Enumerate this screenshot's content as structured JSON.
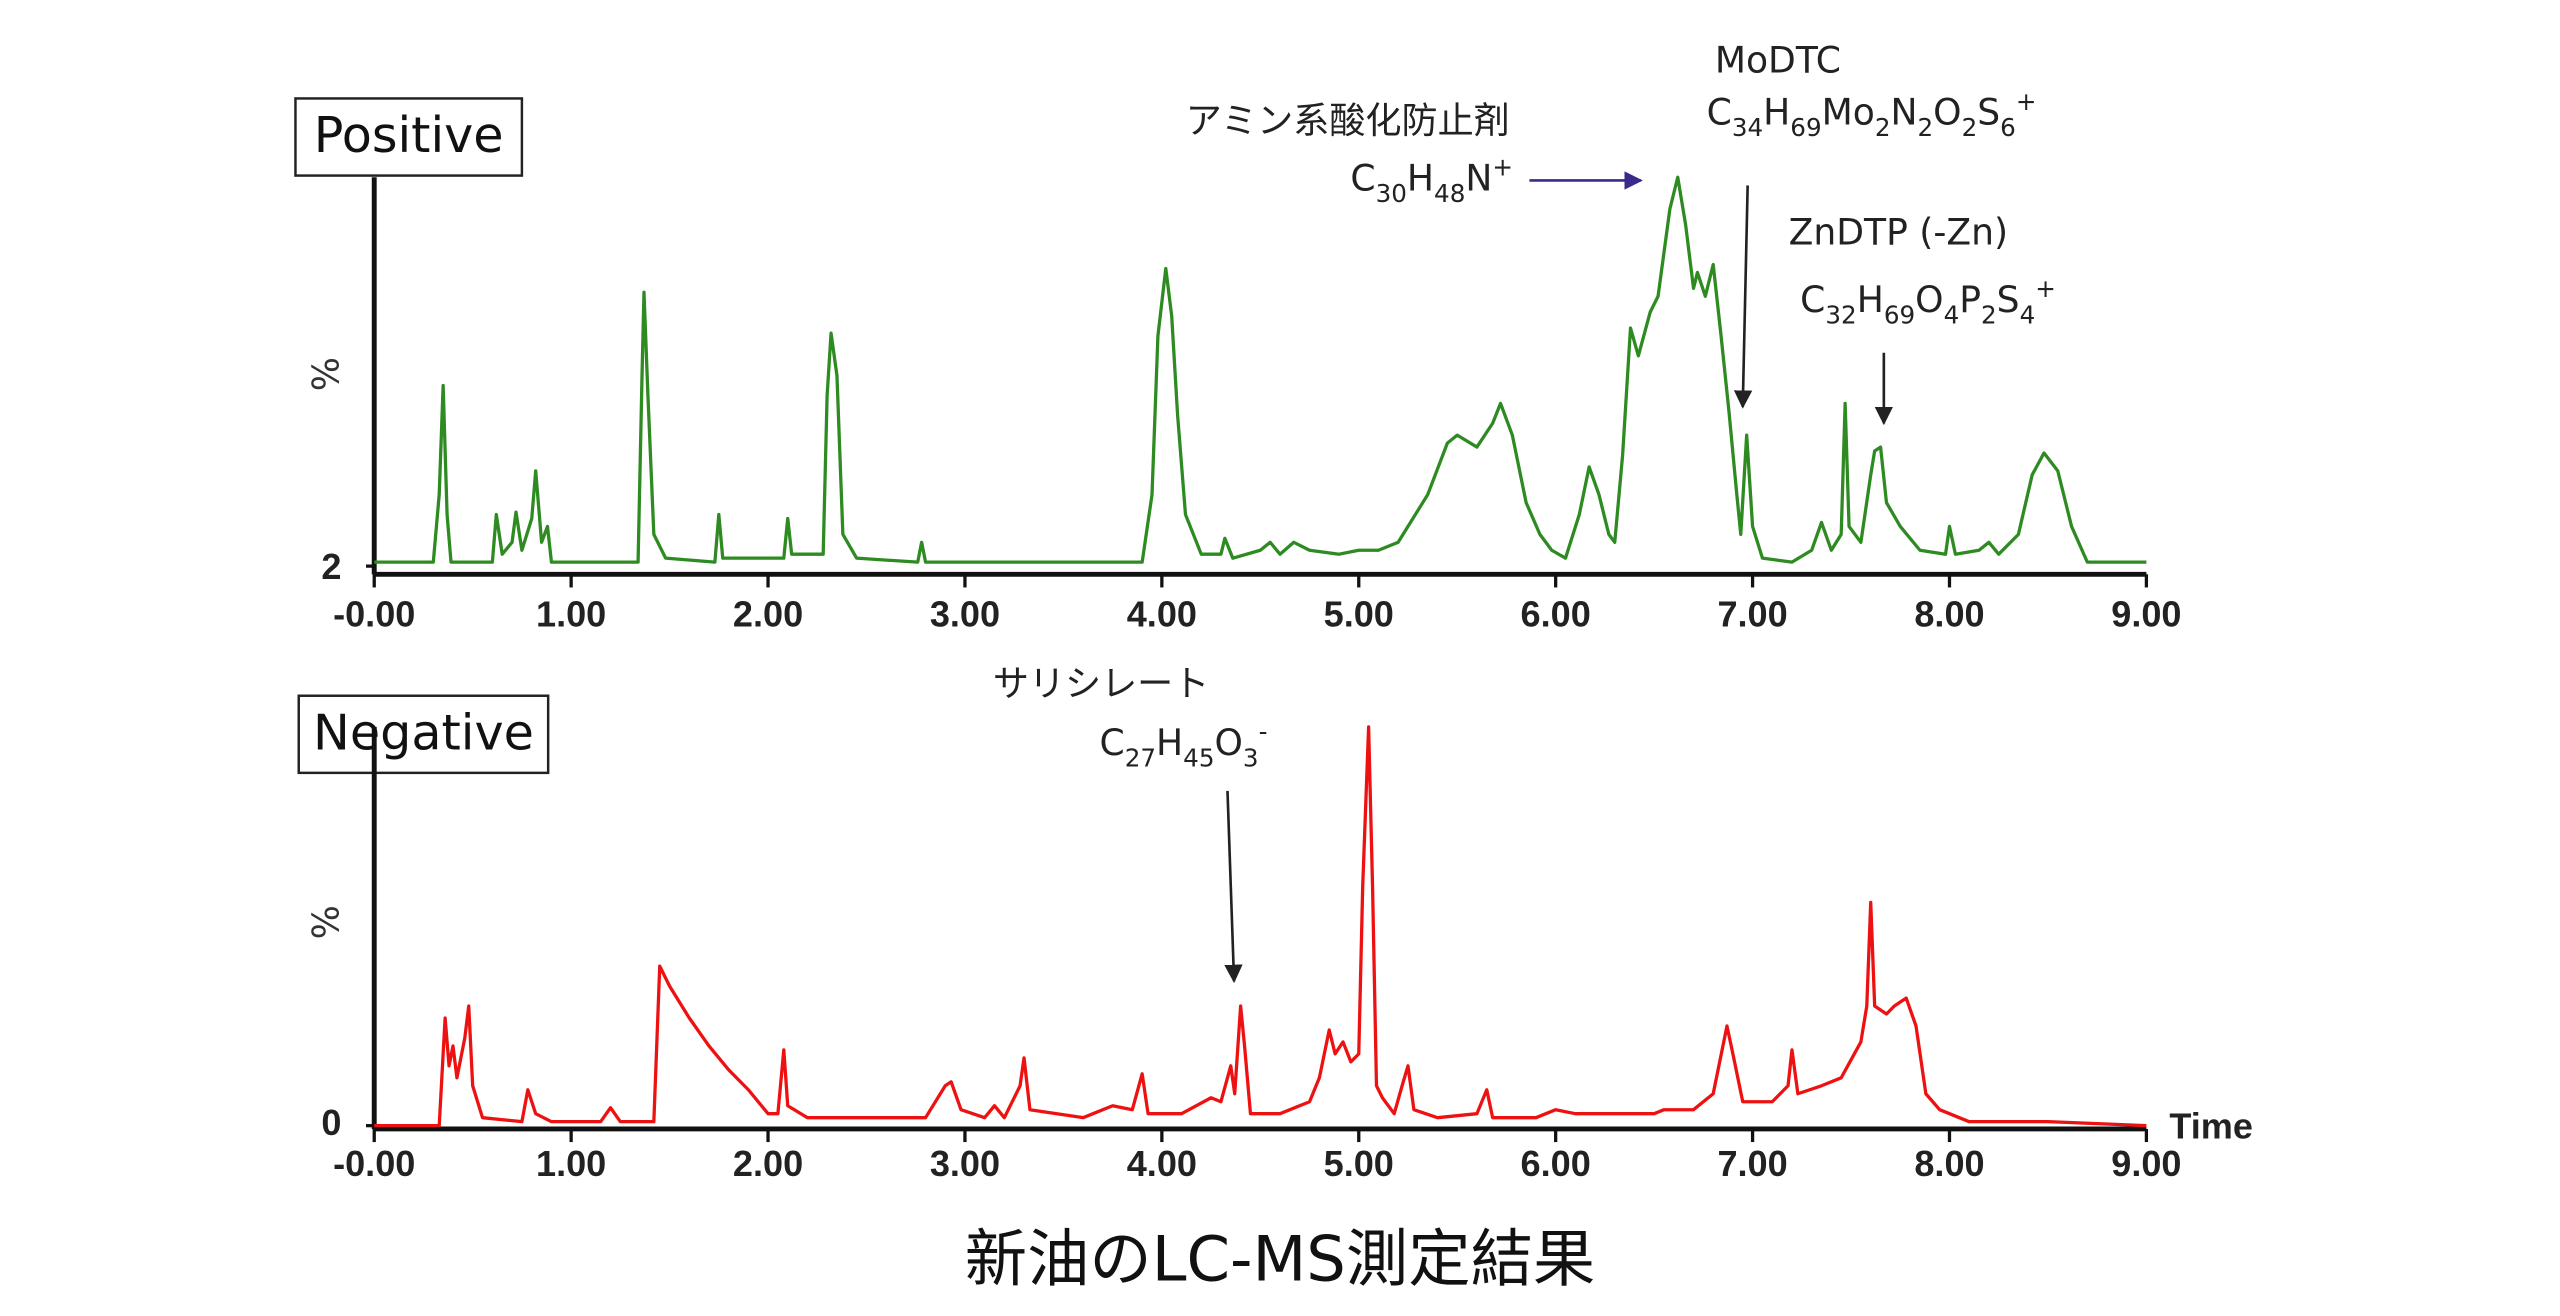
{
  "title": "新油のLC-MS測定結果",
  "chart_data": [
    {
      "type": "line",
      "title": "Positive",
      "y_label": "%",
      "color": "#2e8b22",
      "xlim": [
        0,
        9
      ],
      "ylim": [
        2,
        100
      ],
      "xticks": [
        {
          "value": 0,
          "label": "-0.00"
        },
        {
          "value": 1,
          "label": "1.00"
        },
        {
          "value": 2,
          "label": "2.00"
        },
        {
          "value": 3,
          "label": "3.00"
        },
        {
          "value": 4,
          "label": "4.00"
        },
        {
          "value": 5,
          "label": "5.00"
        },
        {
          "value": 6,
          "label": "6.00"
        },
        {
          "value": 7,
          "label": "7.00"
        },
        {
          "value": 8,
          "label": "8.00"
        },
        {
          "value": 9,
          "label": "9.00"
        }
      ],
      "yticks": [
        2
      ],
      "x": [
        0,
        0.3,
        0.33,
        0.35,
        0.37,
        0.39,
        0.6,
        0.62,
        0.65,
        0.7,
        0.72,
        0.75,
        0.8,
        0.82,
        0.85,
        0.88,
        0.9,
        1.34,
        1.36,
        1.37,
        1.39,
        1.42,
        1.48,
        1.73,
        1.75,
        1.77,
        2.08,
        2.1,
        2.12,
        2.28,
        2.3,
        2.32,
        2.35,
        2.38,
        2.45,
        2.76,
        2.78,
        2.8,
        3.9,
        3.95,
        3.98,
        4.02,
        4.05,
        4.08,
        4.12,
        4.2,
        4.3,
        4.32,
        4.36,
        4.5,
        4.55,
        4.6,
        4.67,
        4.75,
        4.9,
        5.0,
        5.1,
        5.2,
        5.35,
        5.45,
        5.5,
        5.6,
        5.68,
        5.72,
        5.78,
        5.85,
        5.92,
        5.98,
        6.05,
        6.12,
        6.17,
        6.22,
        6.27,
        6.3,
        6.34,
        6.38,
        6.42,
        6.48,
        6.52,
        6.58,
        6.62,
        6.66,
        6.7,
        6.72,
        6.76,
        6.8,
        6.84,
        6.88,
        6.92,
        6.94,
        6.97,
        7.0,
        7.05,
        7.2,
        7.3,
        7.35,
        7.4,
        7.45,
        7.47,
        7.49,
        7.55,
        7.6,
        7.62,
        7.65,
        7.68,
        7.75,
        7.85,
        7.98,
        8.0,
        8.03,
        8.15,
        8.2,
        8.25,
        8.35,
        8.42,
        8.48,
        8.55,
        8.62,
        8.7,
        9.0
      ],
      "values": [
        3,
        3,
        20,
        47.5,
        15,
        3,
        3,
        15,
        5,
        8,
        15.6,
        6,
        14,
        26,
        8,
        12,
        3,
        3,
        50,
        71,
        45,
        10,
        4,
        3,
        15,
        4,
        4,
        14,
        5,
        5,
        45,
        60.7,
        50,
        10,
        4,
        3,
        8,
        3,
        3,
        20,
        60,
        77,
        65,
        40,
        15,
        5,
        5,
        9,
        4,
        6,
        8,
        5,
        8,
        6,
        5,
        6,
        6,
        8,
        20,
        33,
        35,
        32,
        38,
        43,
        35,
        18,
        10,
        6,
        4,
        15,
        27,
        20,
        10,
        8,
        30,
        62,
        55,
        66,
        70,
        92,
        100,
        88,
        72,
        76,
        70,
        78,
        60,
        41,
        20,
        10,
        35,
        12,
        4,
        3,
        6,
        13,
        6,
        10,
        43,
        12,
        8,
        25,
        31,
        32,
        18,
        12,
        6,
        5,
        12,
        5,
        6,
        8,
        5,
        10,
        25,
        30.5,
        26,
        12,
        3,
        3
      ],
      "annotations": [
        {
          "label": "アミン系酸化防止剤",
          "formula": [
            {
              "text": "C"
            },
            {
              "text": "30",
              "pos": "sub"
            },
            {
              "text": "H"
            },
            {
              "text": "48",
              "pos": "sub"
            },
            {
              "text": "N"
            },
            {
              "text": "+",
              "pos": "sup"
            }
          ]
        },
        {
          "label": "MoDTC",
          "formula": [
            {
              "text": "C"
            },
            {
              "text": "34",
              "pos": "sub"
            },
            {
              "text": "H"
            },
            {
              "text": "69",
              "pos": "sub"
            },
            {
              "text": "Mo"
            },
            {
              "text": "2",
              "pos": "sub"
            },
            {
              "text": "N"
            },
            {
              "text": "2",
              "pos": "sub"
            },
            {
              "text": "O"
            },
            {
              "text": "2",
              "pos": "sub"
            },
            {
              "text": "S"
            },
            {
              "text": "6",
              "pos": "sub"
            },
            {
              "text": "+",
              "pos": "sup"
            }
          ]
        },
        {
          "label": "ZnDTP (-Zn)",
          "formula": [
            {
              "text": "C"
            },
            {
              "text": "32",
              "pos": "sub"
            },
            {
              "text": "H"
            },
            {
              "text": "69",
              "pos": "sub"
            },
            {
              "text": "O"
            },
            {
              "text": "4",
              "pos": "sub"
            },
            {
              "text": "P"
            },
            {
              "text": "2",
              "pos": "sub"
            },
            {
              "text": "S"
            },
            {
              "text": "4",
              "pos": "sub"
            },
            {
              "text": "+",
              "pos": "sup"
            }
          ]
        }
      ]
    },
    {
      "type": "line",
      "title": "Negative",
      "y_label": "%",
      "x_label": "Time",
      "color": "#ee1111",
      "xlim": [
        0,
        9
      ],
      "ylim": [
        0,
        100
      ],
      "xticks": [
        {
          "value": 0,
          "label": "-0.00"
        },
        {
          "value": 1,
          "label": "1.00"
        },
        {
          "value": 2,
          "label": "2.00"
        },
        {
          "value": 3,
          "label": "3.00"
        },
        {
          "value": 4,
          "label": "4.00"
        },
        {
          "value": 5,
          "label": "5.00"
        },
        {
          "value": 6,
          "label": "6.00"
        },
        {
          "value": 7,
          "label": "7.00"
        },
        {
          "value": 8,
          "label": "8.00"
        },
        {
          "value": 9,
          "label": "9.00"
        }
      ],
      "yticks": [
        0
      ],
      "x": [
        0,
        0.33,
        0.36,
        0.38,
        0.4,
        0.42,
        0.46,
        0.48,
        0.5,
        0.55,
        0.75,
        0.78,
        0.82,
        0.9,
        1.15,
        1.2,
        1.25,
        1.42,
        1.45,
        1.5,
        1.6,
        1.7,
        1.8,
        1.9,
        2.0,
        2.05,
        2.08,
        2.1,
        2.2,
        2.5,
        2.8,
        2.9,
        2.93,
        2.98,
        3.1,
        3.15,
        3.2,
        3.28,
        3.3,
        3.33,
        3.6,
        3.75,
        3.85,
        3.9,
        3.93,
        4.1,
        4.25,
        4.3,
        4.35,
        4.37,
        4.4,
        4.42,
        4.45,
        4.6,
        4.75,
        4.8,
        4.85,
        4.88,
        4.92,
        4.96,
        5.0,
        5.02,
        5.05,
        5.07,
        5.09,
        5.12,
        5.18,
        5.22,
        5.25,
        5.28,
        5.4,
        5.6,
        5.65,
        5.68,
        5.9,
        6.0,
        6.1,
        6.5,
        6.55,
        6.7,
        6.8,
        6.87,
        6.9,
        6.95,
        7.0,
        7.1,
        7.18,
        7.2,
        7.23,
        7.35,
        7.45,
        7.55,
        7.58,
        7.6,
        7.62,
        7.68,
        7.72,
        7.78,
        7.83,
        7.88,
        7.95,
        8.1,
        8.5,
        9.0
      ],
      "values": [
        0,
        0,
        27,
        15,
        20,
        12,
        22,
        30,
        10,
        2,
        1,
        9,
        3,
        1,
        1,
        4.5,
        1,
        1,
        40,
        35,
        27,
        20,
        14,
        9,
        3,
        3,
        19,
        5,
        2,
        2,
        2,
        10,
        11,
        4,
        2,
        5,
        2,
        10,
        17,
        4,
        2,
        5,
        4,
        13,
        3,
        3,
        7,
        6,
        15,
        8,
        30,
        20,
        3,
        3,
        6,
        12,
        24,
        18,
        21,
        16,
        18,
        60,
        100,
        60,
        10,
        7,
        3,
        10,
        15,
        4,
        2,
        3,
        9,
        2,
        2,
        4,
        3,
        3,
        4,
        4,
        8,
        25,
        18,
        6,
        6,
        6,
        10,
        19,
        8,
        10,
        12,
        21,
        30,
        56,
        30,
        28,
        30,
        32,
        25,
        8,
        4,
        1,
        1,
        0
      ],
      "annotations": [
        {
          "label": "サリシレート",
          "formula": [
            {
              "text": "C"
            },
            {
              "text": "27",
              "pos": "sub"
            },
            {
              "text": "H"
            },
            {
              "text": "45",
              "pos": "sub"
            },
            {
              "text": "O"
            },
            {
              "text": "3",
              "pos": "sub"
            },
            {
              "text": "-",
              "pos": "sup"
            }
          ]
        }
      ]
    }
  ]
}
